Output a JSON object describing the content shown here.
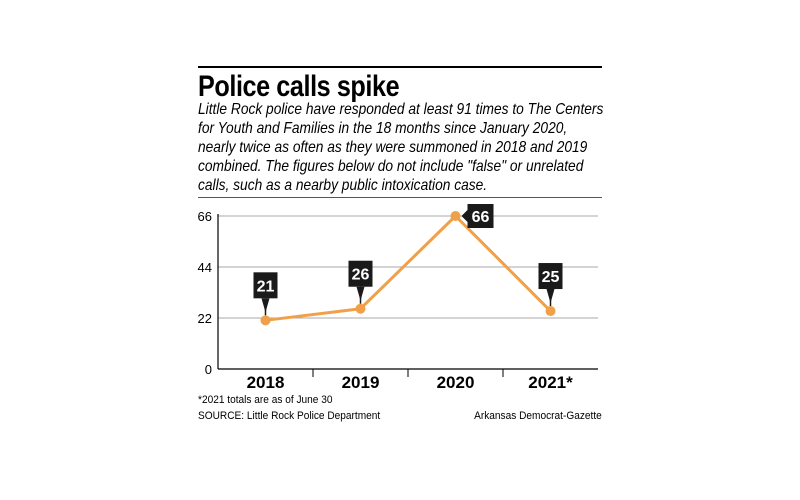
{
  "title": "Police calls spike",
  "description_lines": [
    "Little Rock police have responded at least 91 times to The Centers",
    "for Youth and Families in the 18 months since January 2020,",
    "nearly twice as often as they were summoned in 2018 and 2019",
    "combined. The figures below do not include \"false\" or unrelated",
    "calls, such as a nearby public intoxication case."
  ],
  "footnote": "*2021 totals are as of June 30",
  "source": "SOURCE: Little Rock Police Department",
  "credit": "Arkansas Democrat-Gazette",
  "colors": {
    "line": "#f0a048",
    "label_box": "#1a1a1a",
    "grid": "#aaaaaa"
  },
  "chart_data": {
    "type": "line",
    "categories": [
      "2018",
      "2019",
      "2020",
      "2021*"
    ],
    "values": [
      21,
      26,
      66,
      25
    ],
    "y_ticks": [
      "0",
      "22",
      "44",
      "66"
    ],
    "ylim": [
      0,
      66
    ],
    "grid": true,
    "data_labels": [
      "21",
      "26",
      "66",
      "25"
    ]
  }
}
